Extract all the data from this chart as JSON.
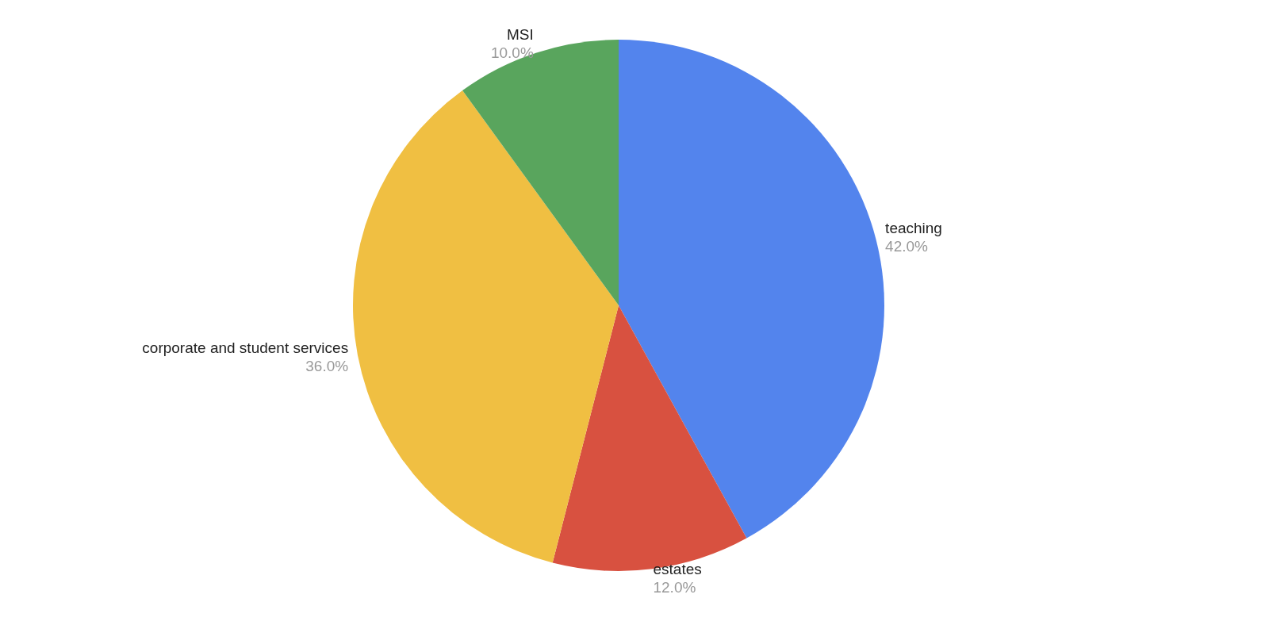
{
  "chart_data": {
    "type": "pie",
    "categories": [
      "teaching",
      "estates",
      "corporate and student services",
      "MSI"
    ],
    "values": [
      42,
      12,
      36,
      10
    ],
    "colors": [
      "#5384ed",
      "#d85140",
      "#f0bf42",
      "#59a55d"
    ],
    "value_labels": [
      "42.0%",
      "12.0%",
      "36.0%",
      "10.0%"
    ],
    "legend": false
  }
}
